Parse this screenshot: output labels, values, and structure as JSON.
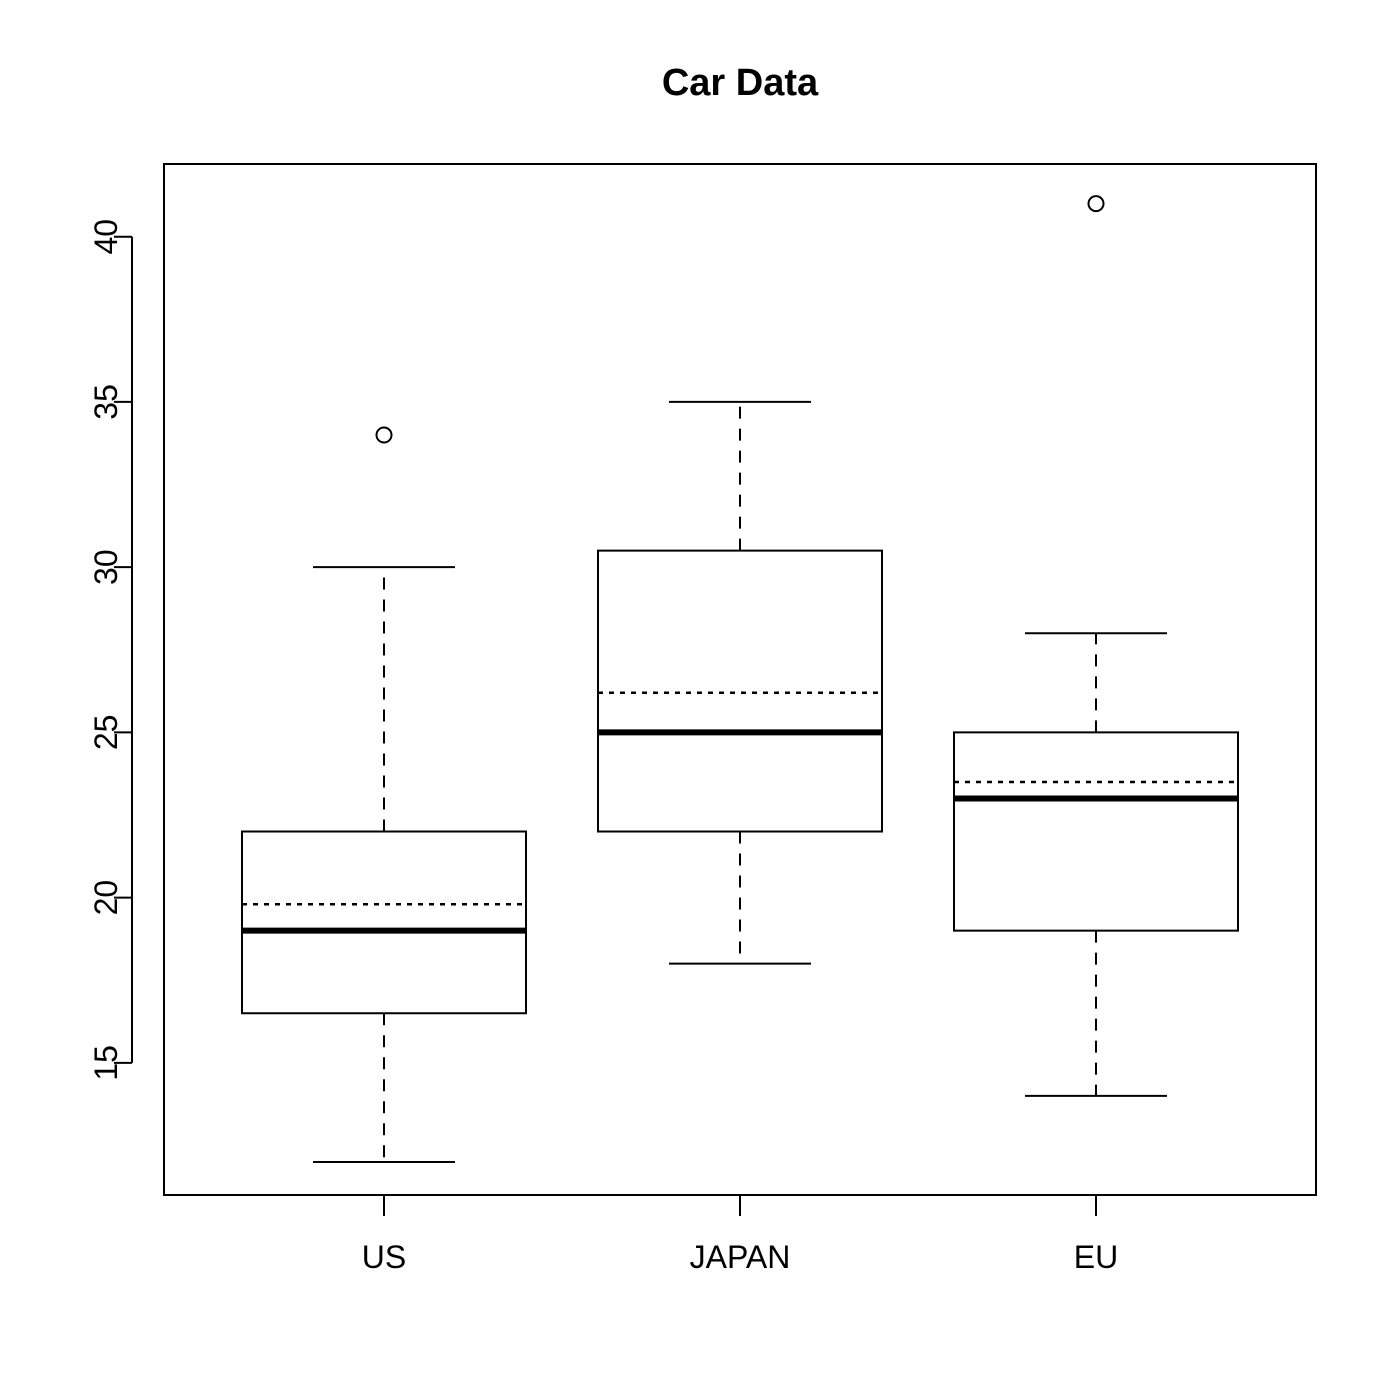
{
  "chart_data": {
    "type": "box",
    "title": "Car Data",
    "xlabel": "",
    "ylabel": "",
    "ylim": [
      11,
      42.2
    ],
    "yticks": [
      15,
      20,
      25,
      30,
      35,
      40
    ],
    "grid": false,
    "categories": [
      "US",
      "JAPAN",
      "EU"
    ],
    "boxes": [
      {
        "category": "US",
        "whisker_low": 12,
        "q1": 16.5,
        "median": 19,
        "q3": 22,
        "whisker_high": 30,
        "mean": 19.8,
        "outliers": [
          34
        ]
      },
      {
        "category": "JAPAN",
        "whisker_low": 18,
        "q1": 22,
        "median": 25,
        "q3": 30.5,
        "whisker_high": 35,
        "mean": 26.2,
        "outliers": []
      },
      {
        "category": "EU",
        "whisker_low": 14,
        "q1": 19,
        "median": 23,
        "q3": 25,
        "whisker_high": 28,
        "mean": 23.5,
        "outliers": [
          41
        ]
      }
    ],
    "colors": {
      "stroke": "#000000",
      "background": "#ffffff"
    }
  }
}
